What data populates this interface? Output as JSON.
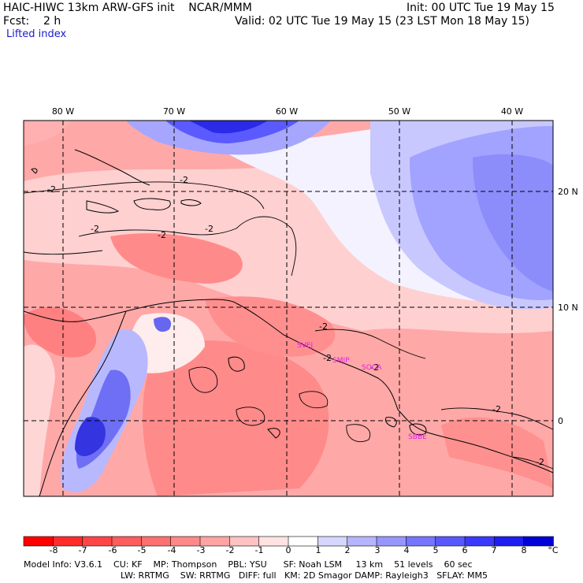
{
  "header": {
    "title": "HAIC-HIWC 13km ARW-GFS init    NCAR/MMM",
    "init": "Init: 00 UTC Tue 19 May 15",
    "fcst": "Fcst:    2 h",
    "valid": "Valid: 02 UTC Tue 19 May 15 (23 LST Mon 18 May 15)",
    "field": "Lifted index"
  },
  "map": {
    "lon_labels": [
      "80 W",
      "70 W",
      "60 W",
      "50 W",
      "40 W"
    ],
    "lat_labels": [
      "20 N",
      "10 N",
      "0"
    ],
    "stations": [
      "SVEJ",
      "SMJP",
      "SOCA",
      "SBBE"
    ],
    "contour_labels": [
      "-2",
      "-2",
      "-2",
      "-2",
      "-2",
      "-2",
      "-2",
      "-2",
      "-2",
      "-2"
    ]
  },
  "colorbar": {
    "unit": "°C",
    "ticks": [
      "-8",
      "-7",
      "-6",
      "-5",
      "-4",
      "-3",
      "-2",
      "-1",
      "0",
      "1",
      "2",
      "3",
      "4",
      "5",
      "6",
      "7",
      "8"
    ],
    "colors": [
      "#ff0000",
      "#ff2b2b",
      "#ff4545",
      "#ff5c5c",
      "#ff7070",
      "#ff8888",
      "#ffa3a3",
      "#ffc2c2",
      "#ffe3e3",
      "#ffffff",
      "#d6d6ff",
      "#b5b5ff",
      "#9696ff",
      "#7575ff",
      "#5858ff",
      "#3a3aff",
      "#1e1ef0",
      "#0000d8"
    ]
  },
  "footer": {
    "line1": "Model Info: V3.6.1    CU: KF    MP: Thompson    PBL: YSU      SF: Noah LSM     13 km    51 levels    60 sec",
    "line2": "LW: RRTMG    SW: RRTMG   DIFF: full   KM: 2D Smagor DAMP: Rayleigh3   SFLAY: MM5"
  }
}
